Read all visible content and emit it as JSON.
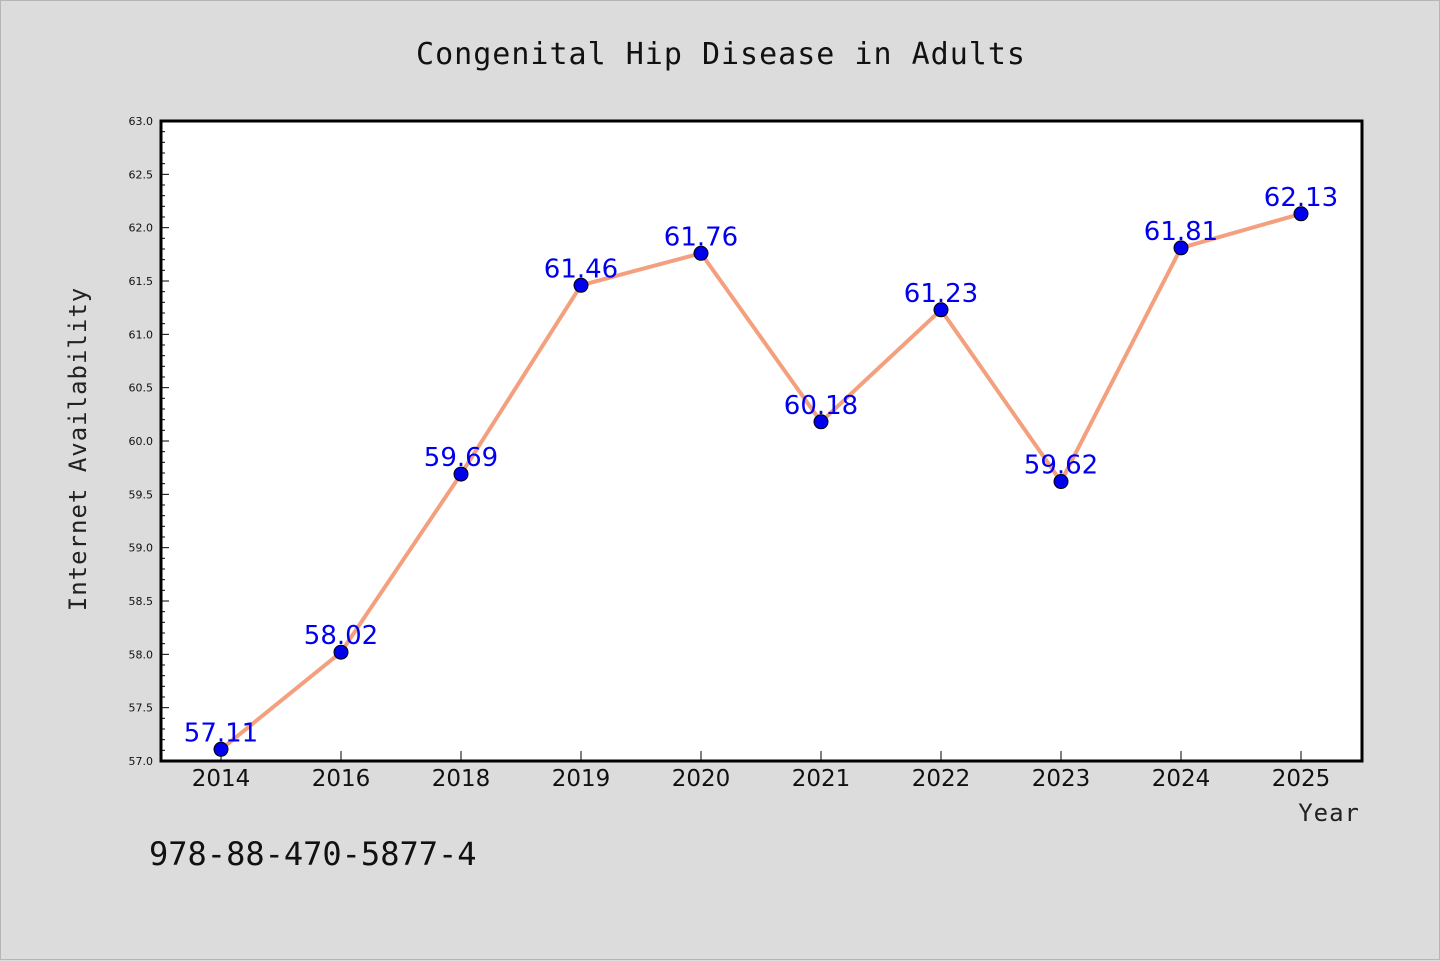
{
  "chart_data": {
    "type": "line",
    "title": "Congenital Hip Disease in Adults",
    "xlabel": "Year",
    "ylabel": "Internet Availability",
    "categories": [
      "2014",
      "2016",
      "2018",
      "2019",
      "2020",
      "2021",
      "2022",
      "2023",
      "2024",
      "2025"
    ],
    "series": [
      {
        "values": [
          57.11,
          58.02,
          59.69,
          61.46,
          61.76,
          60.18,
          61.23,
          59.62,
          61.81,
          62.13
        ],
        "data_labels": [
          "57.11",
          "58.02",
          "59.69",
          "61.46",
          "61.76",
          "60.18",
          "61.23",
          "59.62",
          "61.81",
          "62.13"
        ]
      }
    ],
    "ylim": [
      57.0,
      63.0
    ],
    "yticks": [
      "57.0",
      "57.5",
      "58.0",
      "58.5",
      "59.0",
      "59.5",
      "60.0",
      "60.5",
      "61.0",
      "61.5",
      "62.0",
      "62.5",
      "63.0"
    ],
    "grid": false,
    "line_color": "#f4a07e",
    "marker_color": "#0000ee",
    "label_color": "#0000ee"
  },
  "footer": {
    "isbn": "978-88-470-5877-4"
  }
}
